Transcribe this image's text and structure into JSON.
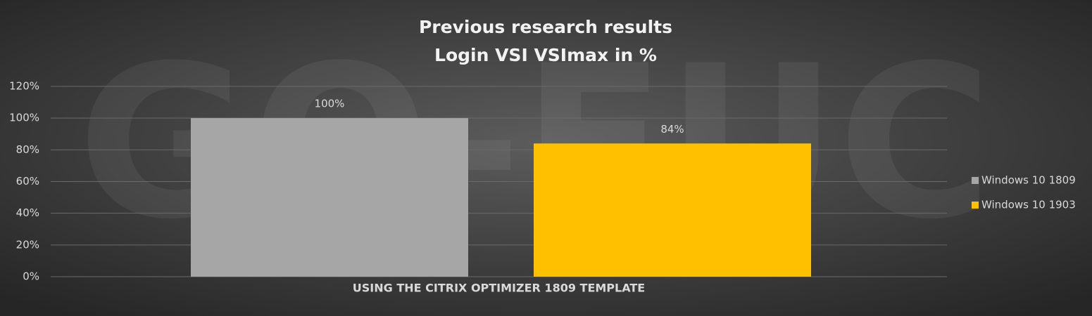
{
  "chart_data": {
    "type": "bar",
    "title": "Previous research results",
    "subtitle": "Login VSI VSImax in %",
    "watermark": "GO-EUC",
    "categories": [
      "USING THE CITRIX OPTIMIZER 1809 TEMPLATE"
    ],
    "series": [
      {
        "name": "Windows 10 1809",
        "color": "#a6a6a6",
        "values": [
          100
        ],
        "value_labels": [
          "100%"
        ]
      },
      {
        "name": "Windows 10 1903",
        "color": "#ffc000",
        "values": [
          84
        ],
        "value_labels": [
          "84%"
        ]
      }
    ],
    "ylim": [
      0,
      120
    ],
    "yticks": [
      {
        "value": 0,
        "label": "0%"
      },
      {
        "value": 20,
        "label": "20%"
      },
      {
        "value": 40,
        "label": "40%"
      },
      {
        "value": 60,
        "label": "60%"
      },
      {
        "value": 80,
        "label": "80%"
      },
      {
        "value": 100,
        "label": "100%"
      },
      {
        "value": 120,
        "label": "120%"
      }
    ],
    "grid": true,
    "legend": "right"
  }
}
